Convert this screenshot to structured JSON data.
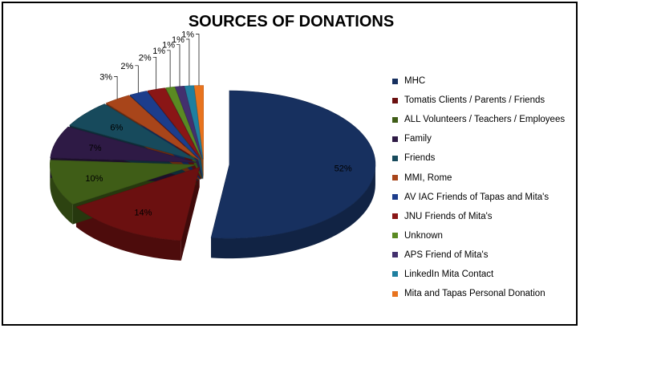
{
  "chart_data": {
    "type": "pie",
    "title": "SOURCES OF DONATIONS",
    "categories": [
      "MHC",
      "Tomatis Clients / Parents / Friends",
      "ALL Volunteers / Teachers / Employees",
      "Family",
      "Friends",
      "MMI, Rome",
      "AV IAC Friends of Tapas and Mita's",
      "JNU Friends of Mita's",
      "Unknown",
      "APS Friend of Mita's",
      "LinkedIn Mita Contact",
      "Mita and Tapas Personal Donation"
    ],
    "values": [
      52,
      14,
      10,
      7,
      6,
      3,
      2,
      2,
      1,
      1,
      1,
      1
    ],
    "value_labels": [
      "52%",
      "14%",
      "10%",
      "7%",
      "6%",
      "3%",
      "2%",
      "2%",
      "1%",
      "1%",
      "1%",
      "1%"
    ],
    "colors": [
      "#17305f",
      "#6b1010",
      "#3f5d17",
      "#2e1a45",
      "#174a5c",
      "#a8451a",
      "#1c3d8c",
      "#8a1616",
      "#5a8a22",
      "#43306e",
      "#1f7fa0",
      "#e8731e"
    ],
    "legend_position": "right",
    "exploded": true,
    "style": "3d"
  }
}
